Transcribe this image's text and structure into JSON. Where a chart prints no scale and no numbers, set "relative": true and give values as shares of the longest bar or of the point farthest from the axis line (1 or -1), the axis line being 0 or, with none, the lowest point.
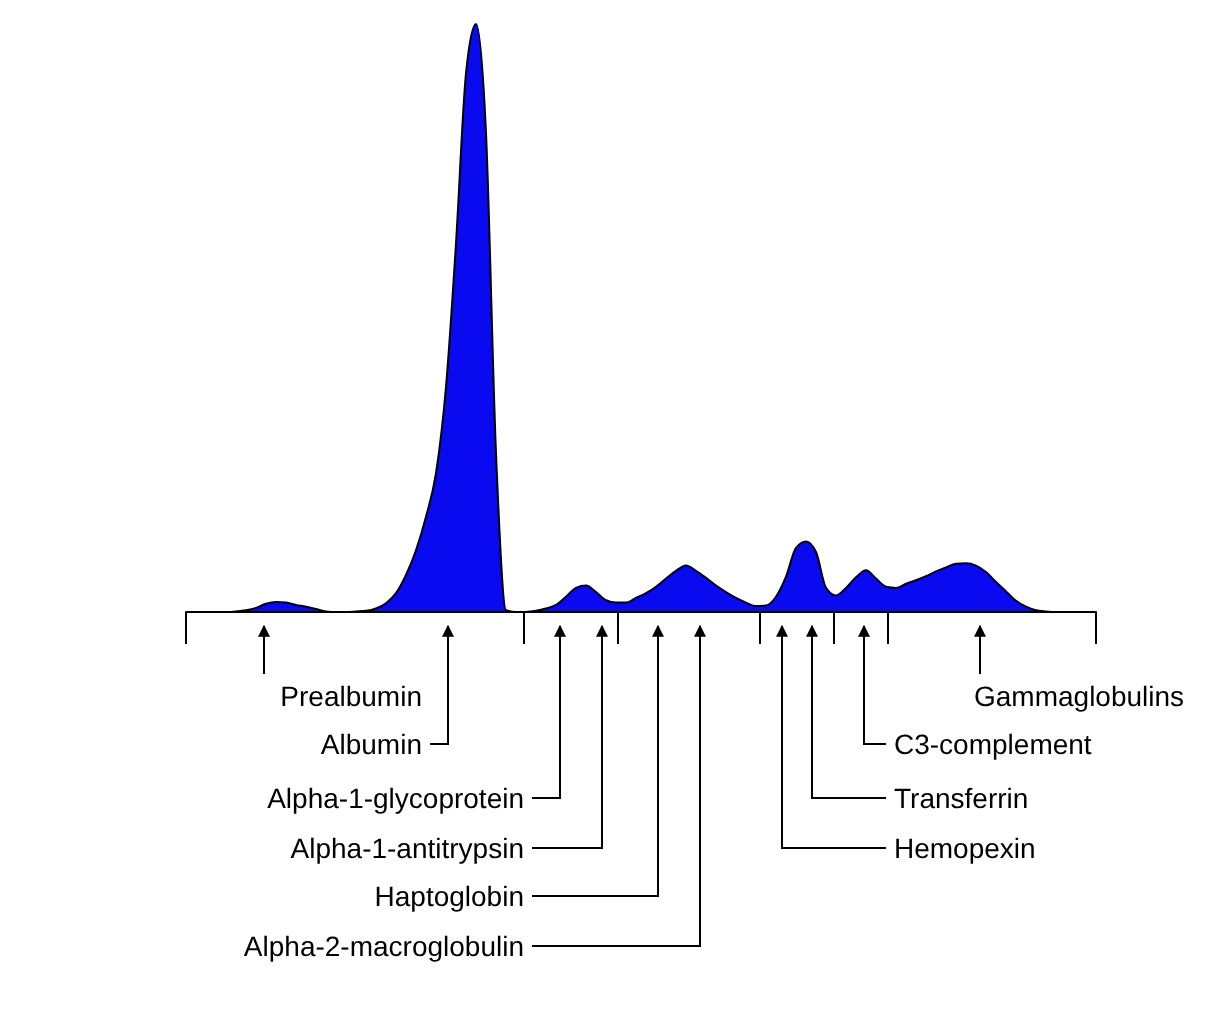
{
  "chart_data": {
    "type": "area",
    "relative": true,
    "color": "#0a0af0",
    "categories": [
      null,
      null,
      null,
      null,
      null,
      null,
      null,
      null,
      null,
      null,
      null,
      null,
      null,
      null,
      null,
      null,
      null,
      null,
      null,
      null,
      null,
      null,
      null,
      null,
      null,
      null,
      null,
      null,
      null,
      null,
      null,
      null,
      null,
      null,
      null,
      null,
      null,
      null,
      null,
      null,
      null,
      null,
      null,
      null,
      null,
      null,
      null,
      null,
      null,
      null,
      null,
      null,
      null,
      null,
      null,
      null,
      null,
      null,
      null,
      null,
      null,
      null,
      null,
      null,
      null,
      null,
      null,
      null,
      null,
      null,
      null,
      null,
      null,
      null,
      null,
      null,
      null,
      null,
      null,
      null,
      null,
      null,
      null,
      null,
      null,
      null,
      null,
      null,
      null,
      null,
      null,
      null
    ],
    "values": [
      0,
      0,
      0,
      0,
      0,
      0.001,
      0.003,
      0.007,
      0.014,
      0.017,
      0.016,
      0.012,
      0.009,
      0.005,
      0.001,
      0,
      0,
      0.001,
      0.002,
      0.006,
      0.015,
      0.032,
      0.063,
      0.105,
      0.162,
      0.236,
      0.383,
      0.627,
      0.916,
      1,
      0.814,
      0.27,
      0.003,
      0,
      0,
      0.002,
      0.006,
      0.012,
      0.026,
      0.041,
      0.045,
      0.034,
      0.02,
      0.016,
      0.016,
      0.024,
      0.032,
      0.043,
      0.057,
      0.07,
      0.079,
      0.07,
      0.058,
      0.045,
      0.034,
      0.024,
      0.016,
      0.01,
      0.011,
      0.026,
      0.06,
      0.109,
      0.12,
      0.102,
      0.041,
      0.028,
      0.041,
      0.059,
      0.071,
      0.057,
      0.043,
      0.041,
      0.048,
      0.054,
      0.061,
      0.069,
      0.076,
      0.082,
      0.083,
      0.079,
      0.068,
      0.051,
      0.035,
      0.019,
      0.009,
      0.003,
      0.001,
      0,
      0,
      0,
      0,
      0
    ],
    "annotations": [
      "Prealbumin",
      "Albumin",
      "Alpha-1-glycoprotein",
      "Alpha-1-antitrypsin",
      "Haptoglobin",
      "Alpha-2-macroglobulin",
      "Gammaglobulins",
      "C3-complement",
      "Transferrin",
      "Hemopexin"
    ]
  }
}
